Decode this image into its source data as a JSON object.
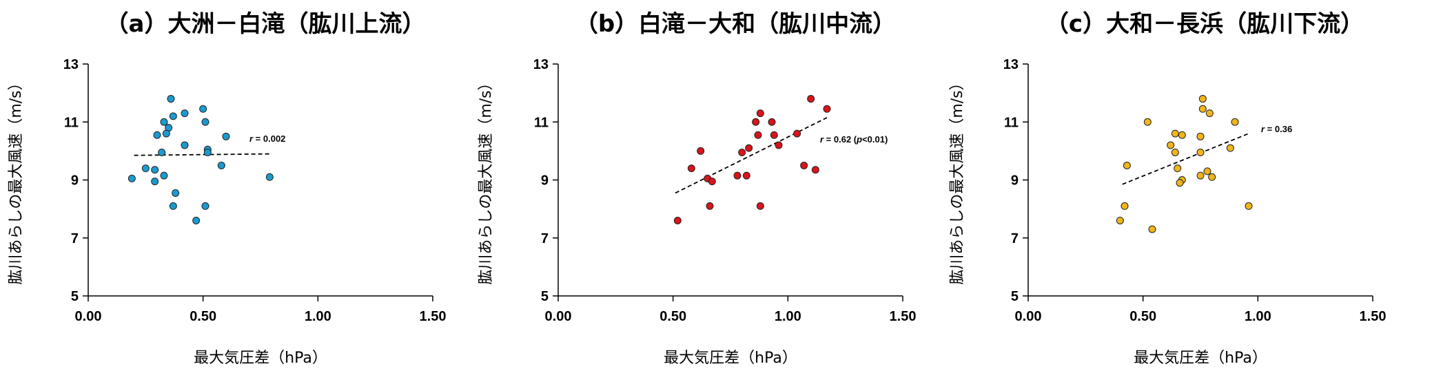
{
  "chart_data": [
    {
      "type": "scatter",
      "title": "（a）大洲－白滝（肱川上流）",
      "xlabel": "最大気圧差（hPa）",
      "ylabel": "肱川あらしの最大風速（m/s）",
      "xlim": [
        0,
        1.5
      ],
      "ylim": [
        5,
        13
      ],
      "xticks": [
        "0.00",
        "0.50",
        "1.00",
        "1.50"
      ],
      "yticks": [
        "5",
        "7",
        "9",
        "11",
        "13"
      ],
      "color": "#1a9bd0",
      "annotation": {
        "r_label": "r",
        "text": " = 0.002",
        "p_open": "",
        "p_label": "",
        "p_text": ""
      },
      "trend": {
        "x": [
          0.2,
          0.8
        ],
        "y": [
          9.85,
          9.9
        ]
      },
      "points": [
        {
          "x": 0.36,
          "y": 11.8
        },
        {
          "x": 0.5,
          "y": 11.45
        },
        {
          "x": 0.42,
          "y": 11.3
        },
        {
          "x": 0.37,
          "y": 11.2
        },
        {
          "x": 0.33,
          "y": 11.0
        },
        {
          "x": 0.51,
          "y": 11.0
        },
        {
          "x": 0.35,
          "y": 10.8
        },
        {
          "x": 0.3,
          "y": 10.55
        },
        {
          "x": 0.34,
          "y": 10.6
        },
        {
          "x": 0.6,
          "y": 10.5
        },
        {
          "x": 0.42,
          "y": 10.2
        },
        {
          "x": 0.52,
          "y": 10.05
        },
        {
          "x": 0.52,
          "y": 9.95
        },
        {
          "x": 0.32,
          "y": 9.95
        },
        {
          "x": 0.58,
          "y": 9.5
        },
        {
          "x": 0.25,
          "y": 9.4
        },
        {
          "x": 0.29,
          "y": 9.35
        },
        {
          "x": 0.33,
          "y": 9.15
        },
        {
          "x": 0.19,
          "y": 9.05
        },
        {
          "x": 0.79,
          "y": 9.1
        },
        {
          "x": 0.29,
          "y": 8.95
        },
        {
          "x": 0.38,
          "y": 8.55
        },
        {
          "x": 0.37,
          "y": 8.1
        },
        {
          "x": 0.51,
          "y": 8.1
        },
        {
          "x": 0.47,
          "y": 7.6
        }
      ]
    },
    {
      "type": "scatter",
      "title": "（b）白滝－大和（肱川中流）",
      "xlabel": "最大気圧差（hPa）",
      "ylabel": "肱川あらしの最大風速（m/s）",
      "xlim": [
        0,
        1.5
      ],
      "ylim": [
        5,
        13
      ],
      "xticks": [
        "0.00",
        "0.50",
        "1.00",
        "1.50"
      ],
      "yticks": [
        "5",
        "7",
        "9",
        "11",
        "13"
      ],
      "color": "#d9141b",
      "annotation": {
        "r_label": "r",
        "text": " = 0.62 (",
        "p_open": "",
        "p_label": "p",
        "p_text": "<0.01)"
      },
      "trend": {
        "x": [
          0.51,
          1.17
        ],
        "y": [
          8.55,
          11.15
        ]
      },
      "points": [
        {
          "x": 1.1,
          "y": 11.8
        },
        {
          "x": 1.17,
          "y": 11.45
        },
        {
          "x": 0.88,
          "y": 11.3
        },
        {
          "x": 0.86,
          "y": 11.0
        },
        {
          "x": 0.93,
          "y": 11.0
        },
        {
          "x": 1.04,
          "y": 10.6
        },
        {
          "x": 0.87,
          "y": 10.55
        },
        {
          "x": 0.94,
          "y": 10.55
        },
        {
          "x": 0.96,
          "y": 10.2
        },
        {
          "x": 0.83,
          "y": 10.1
        },
        {
          "x": 0.62,
          "y": 10.0
        },
        {
          "x": 0.8,
          "y": 9.95
        },
        {
          "x": 1.07,
          "y": 9.5
        },
        {
          "x": 0.58,
          "y": 9.4
        },
        {
          "x": 1.12,
          "y": 9.35
        },
        {
          "x": 0.78,
          "y": 9.15
        },
        {
          "x": 0.82,
          "y": 9.15
        },
        {
          "x": 0.65,
          "y": 9.05
        },
        {
          "x": 0.67,
          "y": 8.95
        },
        {
          "x": 0.66,
          "y": 8.1
        },
        {
          "x": 0.88,
          "y": 8.1
        },
        {
          "x": 0.52,
          "y": 7.6
        }
      ]
    },
    {
      "type": "scatter",
      "title": "（c）大和－長浜（肱川下流）",
      "xlabel": "最大気圧差（hPa）",
      "ylabel": "肱川あらしの最大風速（m/s）",
      "xlim": [
        0,
        1.5
      ],
      "ylim": [
        5,
        13
      ],
      "xticks": [
        "0.00",
        "0.50",
        "1.00",
        "1.50"
      ],
      "yticks": [
        "5",
        "7",
        "9",
        "11",
        "13"
      ],
      "color": "#f0b41c",
      "annotation": {
        "r_label": "r",
        "text": " = 0.36",
        "p_open": "",
        "p_label": "",
        "p_text": ""
      },
      "trend": {
        "x": [
          0.41,
          0.96
        ],
        "y": [
          8.85,
          10.6
        ]
      },
      "points": [
        {
          "x": 0.76,
          "y": 11.8
        },
        {
          "x": 0.76,
          "y": 11.45
        },
        {
          "x": 0.79,
          "y": 11.3
        },
        {
          "x": 0.52,
          "y": 11.0
        },
        {
          "x": 0.9,
          "y": 11.0
        },
        {
          "x": 0.64,
          "y": 10.6
        },
        {
          "x": 0.67,
          "y": 10.55
        },
        {
          "x": 0.75,
          "y": 10.5
        },
        {
          "x": 0.62,
          "y": 10.2
        },
        {
          "x": 0.88,
          "y": 10.1
        },
        {
          "x": 0.64,
          "y": 9.95
        },
        {
          "x": 0.75,
          "y": 9.95
        },
        {
          "x": 0.43,
          "y": 9.5
        },
        {
          "x": 0.65,
          "y": 9.4
        },
        {
          "x": 0.78,
          "y": 9.3
        },
        {
          "x": 0.75,
          "y": 9.15
        },
        {
          "x": 0.8,
          "y": 9.1
        },
        {
          "x": 0.67,
          "y": 9.0
        },
        {
          "x": 0.66,
          "y": 8.9
        },
        {
          "x": 0.42,
          "y": 8.1
        },
        {
          "x": 0.96,
          "y": 8.1
        },
        {
          "x": 0.4,
          "y": 7.6
        },
        {
          "x": 0.54,
          "y": 7.3
        }
      ]
    }
  ]
}
